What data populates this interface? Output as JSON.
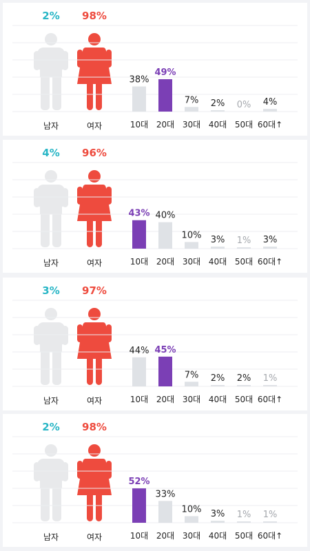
{
  "colors": {
    "male": "#29b6c6",
    "female": "#ee4b3e",
    "accent": "#7b3fb5",
    "bar": "#dfe2e6",
    "figure_gray": "#e8e9eb",
    "text": "#222222",
    "muted": "#a5a8ad",
    "grid": "#eceef1"
  },
  "labels": {
    "male": "남자",
    "female": "여자"
  },
  "chart_data": [
    {
      "type": "bar",
      "gender": {
        "male": "2%",
        "female": "98%"
      },
      "categories": [
        "10대",
        "20대",
        "30대",
        "40대",
        "50대",
        "60대↑"
      ],
      "values": [
        38,
        49,
        7,
        2,
        0,
        4
      ],
      "value_labels": [
        "38%",
        "49%",
        "7%",
        "2%",
        "0%",
        "4%"
      ],
      "highlight_index": 1
    },
    {
      "type": "bar",
      "gender": {
        "male": "4%",
        "female": "96%"
      },
      "categories": [
        "10대",
        "20대",
        "30대",
        "40대",
        "50대",
        "60대↑"
      ],
      "values": [
        43,
        40,
        10,
        3,
        1,
        3
      ],
      "value_labels": [
        "43%",
        "40%",
        "10%",
        "3%",
        "1%",
        "3%"
      ],
      "highlight_index": 0
    },
    {
      "type": "bar",
      "gender": {
        "male": "3%",
        "female": "97%"
      },
      "categories": [
        "10대",
        "20대",
        "30대",
        "40대",
        "50대",
        "60대↑"
      ],
      "values": [
        44,
        45,
        7,
        2,
        2,
        1
      ],
      "value_labels": [
        "44%",
        "45%",
        "7%",
        "2%",
        "2%",
        "1%"
      ],
      "highlight_index": 1
    },
    {
      "type": "bar",
      "gender": {
        "male": "2%",
        "female": "98%"
      },
      "categories": [
        "10대",
        "20대",
        "30대",
        "40대",
        "50대",
        "60대↑"
      ],
      "values": [
        52,
        33,
        10,
        3,
        1,
        1
      ],
      "value_labels": [
        "52%",
        "33%",
        "10%",
        "3%",
        "1%",
        "1%"
      ],
      "highlight_index": 0
    }
  ]
}
